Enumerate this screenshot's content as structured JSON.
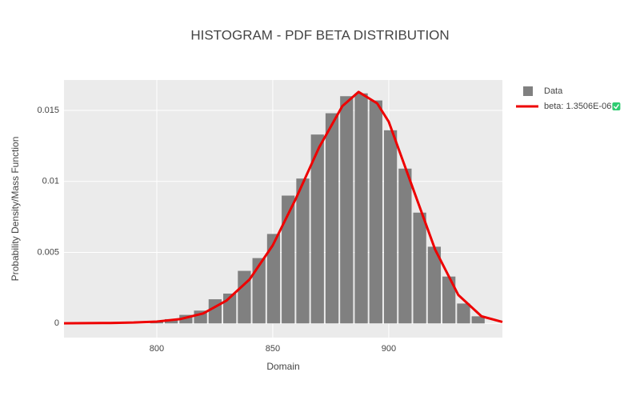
{
  "chart_data": {
    "type": "histogram",
    "title": "HISTOGRAM - PDF BETA DISTRIBUTION",
    "xlabel": "Domain",
    "ylabel": "Probability Density/Mass Function",
    "bins": [
      796.8,
      803.1,
      809.4,
      815.7,
      822,
      828.3,
      834.6,
      840.9,
      847.2,
      853.5,
      859.8,
      866.1,
      872.4,
      878.7,
      885,
      891.3,
      897.6,
      903.9,
      910.2,
      916.5,
      922.8,
      929.1,
      935.4,
      941.7
    ],
    "series": [
      {
        "name": "Data",
        "type": "histogram",
        "color": "#808080",
        "values": [
          0.0001,
          0.0003,
          0.0006,
          0.0009,
          0.0017,
          0.0021,
          0.0037,
          0.0046,
          0.0063,
          0.009,
          0.0102,
          0.0133,
          0.0148,
          0.016,
          0.0162,
          0.0157,
          0.0136,
          0.0109,
          0.0078,
          0.0054,
          0.0033,
          0.0014,
          0.0005
        ]
      },
      {
        "name": "beta: 1.3506E-06",
        "type": "line",
        "color": "#ee0000",
        "x": [
          760,
          780,
          790,
          800,
          810,
          820,
          830,
          840,
          850,
          860,
          870,
          880,
          887,
          895,
          900,
          910,
          920,
          930,
          940,
          949
        ],
        "values": [
          1e-05,
          3e-05,
          6e-05,
          0.00013,
          0.0003,
          0.0007,
          0.0016,
          0.0031,
          0.0055,
          0.0088,
          0.0124,
          0.0153,
          0.0163,
          0.0155,
          0.0142,
          0.0097,
          0.0052,
          0.002,
          0.0005,
          0.0001
        ]
      }
    ],
    "xlim": [
      760,
      949
    ],
    "ylim": [
      -0.001,
      0.01714
    ],
    "xticks": [
      800,
      850,
      900
    ],
    "yticks": [
      0,
      0.005,
      0.01,
      0.015
    ],
    "grid": true,
    "legend": "right"
  }
}
